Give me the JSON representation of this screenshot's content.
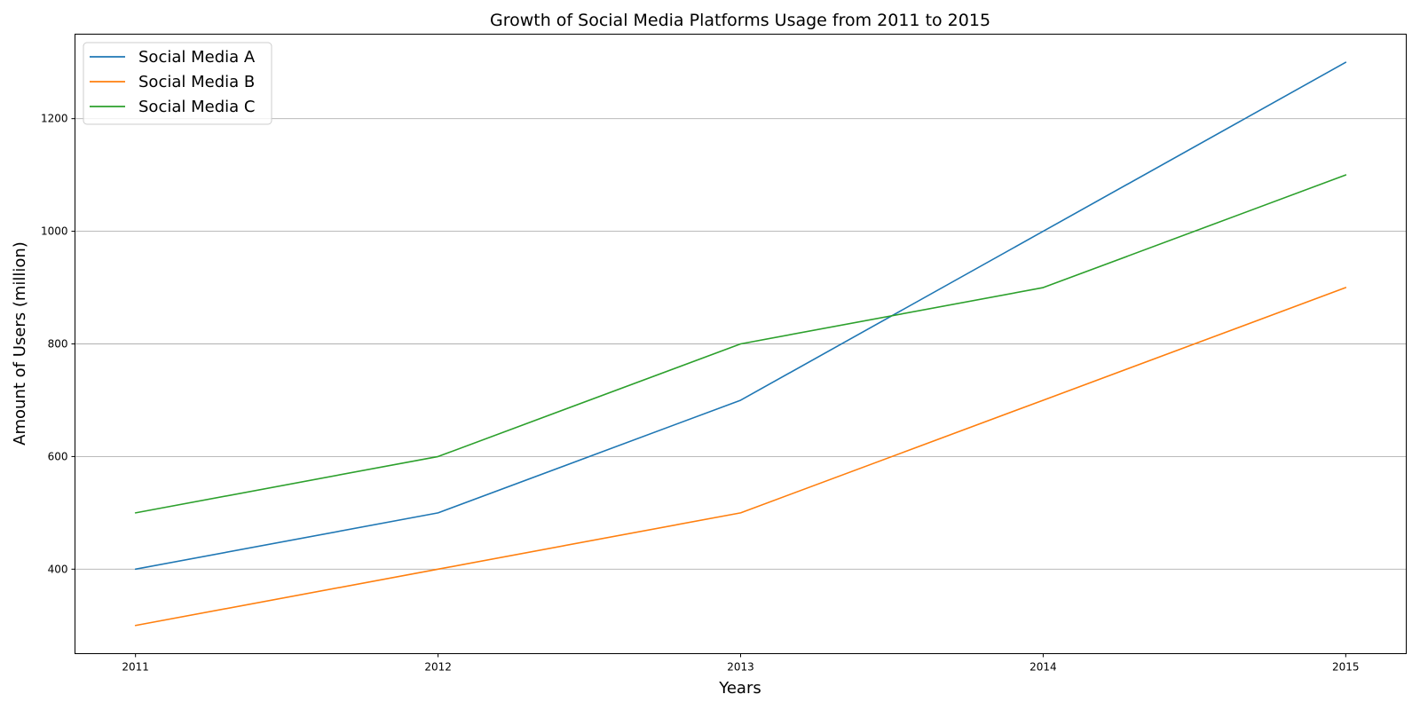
{
  "chart_data": {
    "type": "line",
    "title": "Growth of Social Media Platforms Usage from 2011 to 2015",
    "xlabel": "Years",
    "ylabel": "Amount of Users (million)",
    "x": [
      2011,
      2012,
      2013,
      2014,
      2015
    ],
    "xlim": [
      2010.8,
      2015.2
    ],
    "ylim": [
      250,
      1350
    ],
    "yticks": [
      400,
      600,
      800,
      1000,
      1200
    ],
    "grid": "y-major",
    "legend_position": "top-left",
    "series": [
      {
        "name": "Social Media A",
        "color": "#1f77b4",
        "values": [
          400,
          500,
          700,
          1000,
          1300
        ]
      },
      {
        "name": "Social Media B",
        "color": "#ff7f0e",
        "values": [
          300,
          400,
          500,
          700,
          900
        ]
      },
      {
        "name": "Social Media C",
        "color": "#2ca02c",
        "values": [
          500,
          600,
          800,
          900,
          1100
        ]
      }
    ]
  }
}
